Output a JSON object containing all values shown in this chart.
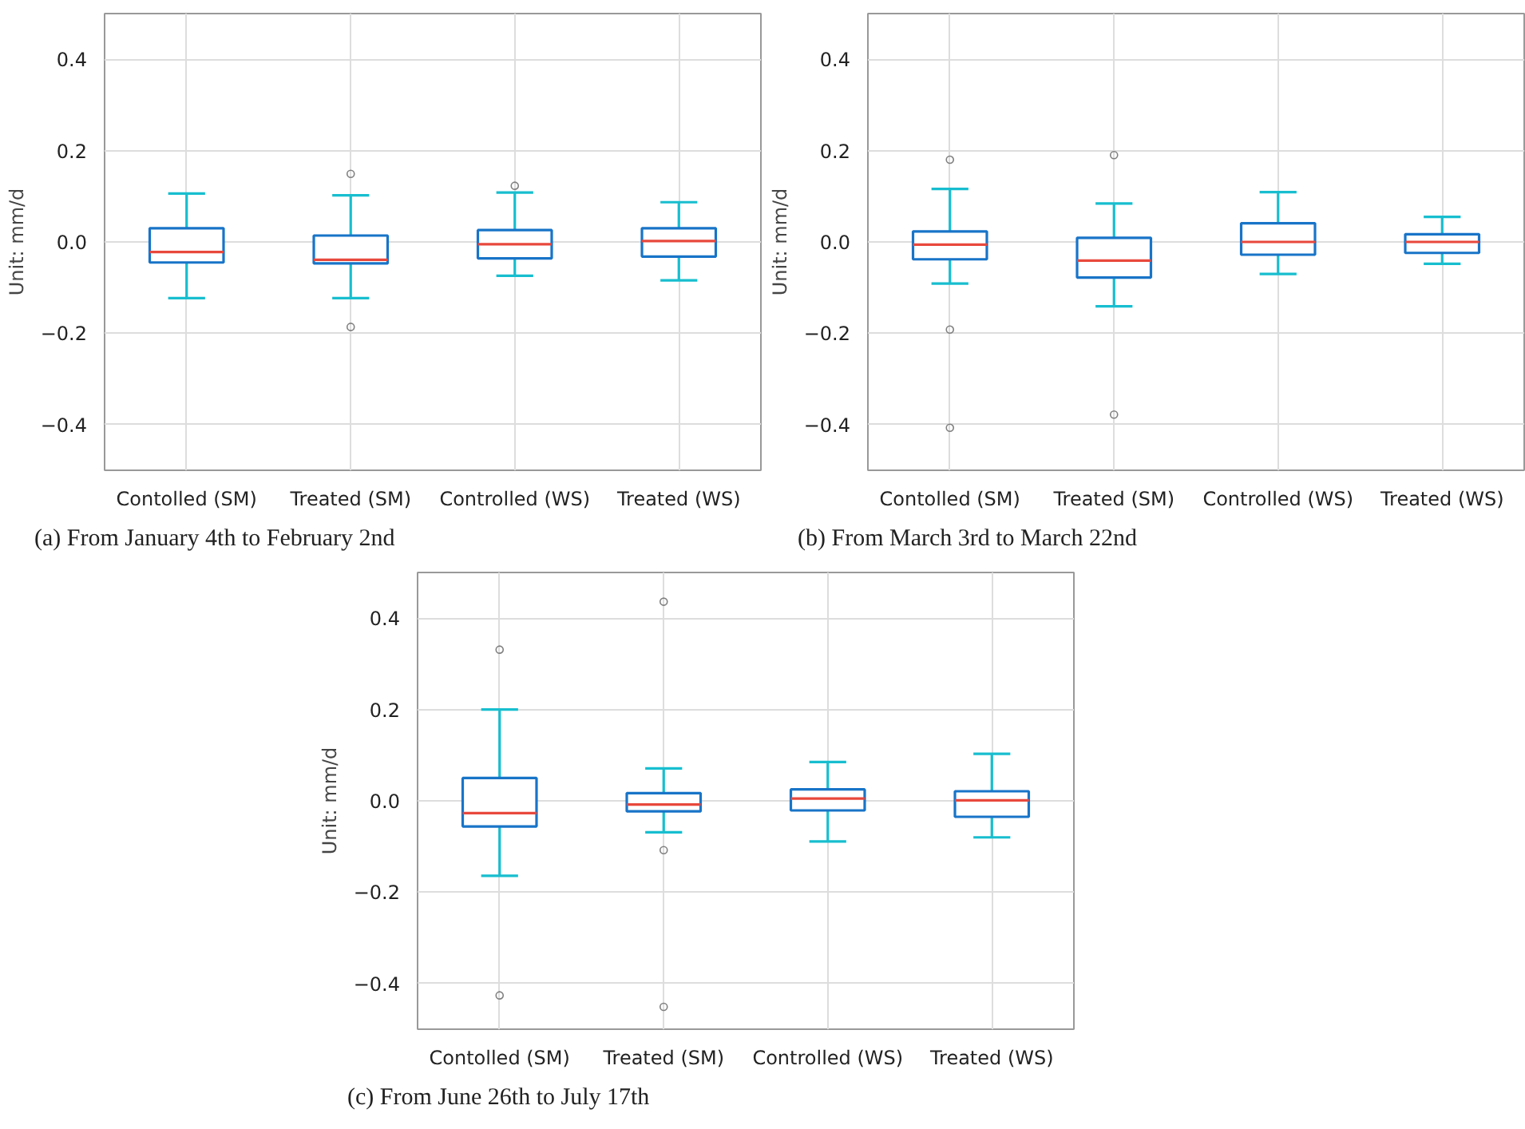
{
  "chart_data": [
    {
      "type": "box",
      "title": "(a) From January 4th to February 2nd",
      "ylabel": "Unit: mm/d",
      "categories": [
        "Contolled (SM)",
        "Treated (SM)",
        "Controlled (WS)",
        "Treated (WS)"
      ],
      "ylim": [
        -0.5,
        0.5
      ],
      "yticks": [
        {
          "value": -0.4,
          "label": "−0.4"
        },
        {
          "value": -0.2,
          "label": "−0.2"
        },
        {
          "value": 0,
          "label": "0.0"
        },
        {
          "value": 0.2,
          "label": "0.2"
        },
        {
          "value": 0.4,
          "label": "0.4"
        }
      ],
      "grid": true,
      "boxes": [
        {
          "low": -0.123,
          "q1": -0.045,
          "median": -0.022,
          "q3": 0.03,
          "high": 0.106
        },
        {
          "low": -0.123,
          "q1": -0.047,
          "median": -0.039,
          "q3": 0.014,
          "high": 0.102,
          "outliers": [
            0.149,
            -0.186
          ]
        },
        {
          "low": -0.074,
          "q1": -0.036,
          "median": -0.005,
          "q3": 0.026,
          "high": 0.108,
          "outliers": [
            0.123
          ]
        },
        {
          "low": -0.084,
          "q1": -0.032,
          "median": 0.002,
          "q3": 0.03,
          "high": 0.087
        }
      ]
    },
    {
      "type": "box",
      "title": "(b) From March 3rd to March 22nd",
      "ylabel": "Unit: mm/d",
      "categories": [
        "Contolled (SM)",
        "Treated (SM)",
        "Controlled (WS)",
        "Treated (WS)"
      ],
      "ylim": [
        -0.5,
        0.5
      ],
      "yticks": [
        {
          "value": -0.4,
          "label": "−0.4"
        },
        {
          "value": -0.2,
          "label": "−0.2"
        },
        {
          "value": 0,
          "label": "0.0"
        },
        {
          "value": 0.2,
          "label": "0.2"
        },
        {
          "value": 0.4,
          "label": "0.4"
        }
      ],
      "grid": true,
      "boxes": [
        {
          "low": -0.091,
          "q1": -0.038,
          "median": -0.006,
          "q3": 0.023,
          "high": 0.116,
          "outliers": [
            0.18,
            -0.192,
            -0.407
          ]
        },
        {
          "low": -0.141,
          "q1": -0.078,
          "median": -0.041,
          "q3": 0.009,
          "high": 0.084,
          "outliers": [
            0.19,
            -0.378
          ]
        },
        {
          "low": -0.07,
          "q1": -0.028,
          "median": 0.0,
          "q3": 0.041,
          "high": 0.109
        },
        {
          "low": -0.048,
          "q1": -0.024,
          "median": 0.0,
          "q3": 0.017,
          "high": 0.055
        }
      ]
    },
    {
      "type": "box",
      "title": "(c) From June 26th to July 17th",
      "ylabel": "Unit: mm/d",
      "categories": [
        "Contolled (SM)",
        "Treated (SM)",
        "Controlled (WS)",
        "Treated (WS)"
      ],
      "ylim": [
        -0.5,
        0.5
      ],
      "yticks": [
        {
          "value": -0.4,
          "label": "−0.4"
        },
        {
          "value": -0.2,
          "label": "−0.2"
        },
        {
          "value": 0,
          "label": "0.0"
        },
        {
          "value": 0.2,
          "label": "0.2"
        },
        {
          "value": 0.4,
          "label": "0.4"
        }
      ],
      "grid": true,
      "boxes": [
        {
          "low": -0.164,
          "q1": -0.056,
          "median": -0.027,
          "q3": 0.05,
          "high": 0.2,
          "outliers": [
            0.331,
            -0.426
          ]
        },
        {
          "low": -0.069,
          "q1": -0.023,
          "median": -0.008,
          "q3": 0.017,
          "high": 0.071,
          "outliers": [
            0.436,
            -0.108,
            -0.451
          ]
        },
        {
          "low": -0.089,
          "q1": -0.021,
          "median": 0.005,
          "q3": 0.025,
          "high": 0.085
        },
        {
          "low": -0.08,
          "q1": -0.035,
          "median": 0.001,
          "q3": 0.021,
          "high": 0.103
        }
      ]
    }
  ]
}
